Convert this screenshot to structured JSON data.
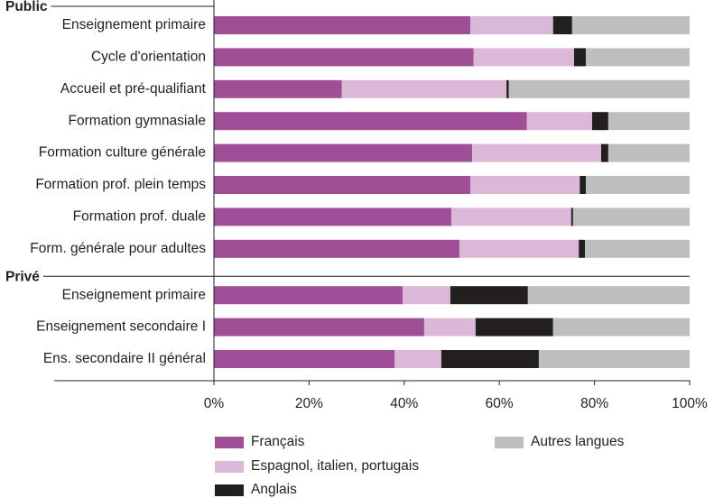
{
  "chart_data": {
    "type": "stacked-bar-horizontal",
    "groups": [
      {
        "name": "Public",
        "categories": [
          "Enseignement primaire",
          "Cycle d'orientation",
          "Accueil et pré-qualifiant",
          "Formation gymnasiale",
          "Formation culture générale",
          "Formation prof. plein temps",
          "Formation prof. duale",
          "Form. générale pour adultes"
        ]
      },
      {
        "name": "Privé",
        "categories": [
          "Enseignement primaire",
          "Enseignement secondaire I",
          "Ens. secondaire II général"
        ]
      }
    ],
    "series": [
      {
        "name": "Français",
        "color": "#a04f97",
        "values": [
          [
            53.9,
            54.6,
            26.9,
            65.8,
            54.3,
            53.9,
            49.9,
            51.6
          ],
          [
            39.7,
            44.2,
            38.0
          ]
        ]
      },
      {
        "name": "Espagnol, italien, portugais",
        "color": "#dbb8d8",
        "values": [
          [
            17.4,
            21.1,
            34.6,
            13.7,
            27.1,
            23.0,
            25.2,
            25.1
          ],
          [
            10.0,
            10.8,
            9.8
          ]
        ]
      },
      {
        "name": "Anglais",
        "color": "#231f20",
        "values": [
          [
            4.0,
            2.5,
            0.5,
            3.4,
            1.5,
            1.3,
            0.4,
            1.3
          ],
          [
            16.3,
            16.3,
            20.5
          ]
        ]
      },
      {
        "name": "Autres langues",
        "color": "#bcbec0",
        "values": [
          [
            24.7,
            21.8,
            38.0,
            17.1,
            17.1,
            21.8,
            24.5,
            22.0
          ],
          [
            34.0,
            28.7,
            31.7
          ]
        ]
      }
    ],
    "xlim": [
      0,
      100
    ],
    "xticks": [
      {
        "value": 0,
        "label": "0%"
      },
      {
        "value": 20,
        "label": "20%"
      },
      {
        "value": 40,
        "label": "40%"
      },
      {
        "value": 60,
        "label": "60%"
      },
      {
        "value": 80,
        "label": "80%"
      },
      {
        "value": 100,
        "label": "100%"
      }
    ]
  }
}
